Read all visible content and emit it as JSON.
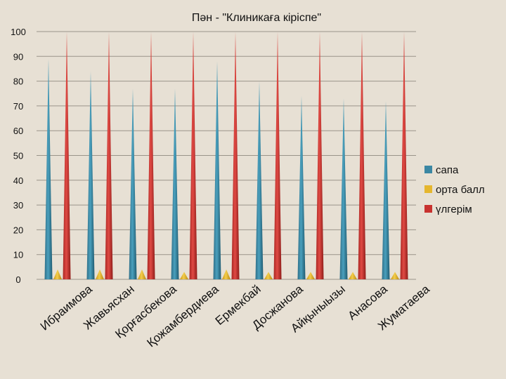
{
  "chart_data": {
    "type": "bar",
    "title": "Пән - \"Клиникаға кіріспе\"",
    "xlabel": "",
    "ylabel": "",
    "ylim": [
      0,
      100
    ],
    "yticks": [
      0,
      10,
      20,
      30,
      40,
      50,
      60,
      70,
      80,
      90,
      100
    ],
    "grid": true,
    "legend_position": "right",
    "categories": [
      "Ибраимова",
      "Жавьясхан",
      "Қорғасбекова",
      "Қожамбердиева",
      "Ермекбай",
      "Досжанова",
      "Айқыныызы",
      "Анасова",
      "Жуматаева"
    ],
    "series": [
      {
        "name": "сапа",
        "color": "#3b87a3",
        "values": [
          89,
          84,
          77,
          77,
          88,
          80,
          74,
          73,
          72
        ]
      },
      {
        "name": "орта балл",
        "color": "#e5b62e",
        "values": [
          4,
          4,
          4,
          3,
          4,
          3,
          3,
          3,
          3
        ]
      },
      {
        "name": "үлгерім",
        "color": "#c8322f",
        "values": [
          100,
          100,
          100,
          100,
          100,
          100,
          100,
          100,
          100
        ]
      }
    ]
  }
}
